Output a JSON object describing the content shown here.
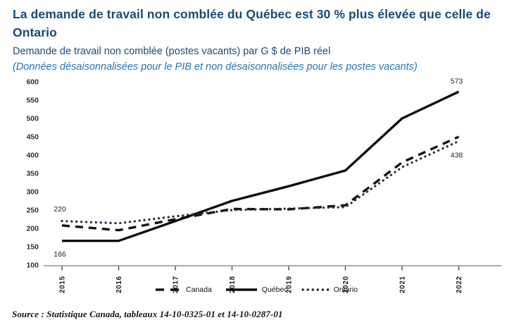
{
  "chart_data": {
    "type": "line",
    "title": "La demande de travail non comblée du Québec est 30 % plus élevée que celle de Ontario",
    "subtitle": "Demande de travail non comblée (postes vacants) par G $ de PIB réel",
    "note": "(Données désaisonnalisées pour le PIB et non désaisonnalisées pour les postes vacants)",
    "xlabel": "",
    "ylabel": "",
    "categories": [
      "2015",
      "2016",
      "2017",
      "2018",
      "2019",
      "2020",
      "2021",
      "2022"
    ],
    "series": [
      {
        "name": "Canada",
        "style": "dashed",
        "color": "#111111",
        "values": [
          208,
          195,
          225,
          253,
          252,
          263,
          380,
          450
        ]
      },
      {
        "name": "Québec",
        "style": "solid",
        "color": "#0d0d0d",
        "values": [
          166,
          166,
          220,
          275,
          315,
          358,
          500,
          573
        ]
      },
      {
        "name": "Ontario",
        "style": "dotted",
        "color": "#1a2e42",
        "values": [
          220,
          214,
          233,
          250,
          254,
          258,
          367,
          438
        ]
      }
    ],
    "y_ticks": [
      600,
      550,
      500,
      450,
      400,
      350,
      300,
      250,
      200,
      150,
      100
    ],
    "ylim": [
      100,
      600
    ],
    "grid": false,
    "legend_position": "bottom",
    "annotations": [
      {
        "text": "220",
        "year": "2015",
        "anchor_value": 253
      },
      {
        "text": "166",
        "year": "2015",
        "anchor_value": 130
      },
      {
        "text": "573",
        "year": "2022",
        "anchor_value": 602
      },
      {
        "text": "438",
        "year": "2022",
        "anchor_value": 400
      }
    ]
  },
  "source": "Source : Statistique Canada, tableaux 14-10-0325-01 et 14-10-0287-01",
  "colors": {
    "title": "#1b4a78",
    "subtitle": "#1b4a78",
    "note": "#2277b5",
    "axis_line": "#ababab",
    "tick_mark": "#555555",
    "tick_label": "#2e2e2e",
    "source_text": "#141414"
  }
}
